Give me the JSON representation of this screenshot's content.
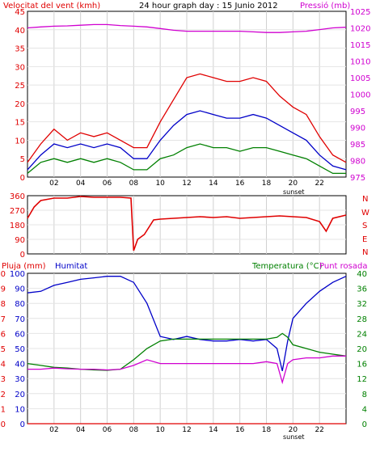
{
  "colors": {
    "wind": "#e00000",
    "wind_avg": "#0000c8",
    "gust": "#008000",
    "pressure": "#d000d0",
    "direction": "#e00000",
    "humidity": "#0000c8",
    "temperature": "#008000",
    "dewpoint": "#d000d0",
    "rain": "#e00000"
  },
  "top_panel": {
    "title": "24 hour graph day : 15 Junio 2012",
    "left_label": "Velocitat del vent (kmh)",
    "right_label": "Pressió (mb)"
  },
  "mid_panel": {
    "compass": [
      "N",
      "W",
      "S",
      "E",
      "N"
    ]
  },
  "bottom_panel": {
    "rain_label": "Pluja (mm)",
    "humidity_label": "Humitat",
    "temp_label": "Temperatura (°C)",
    "dew_label": "Punt rosada"
  },
  "sunset_label": "sunset",
  "chart_data": [
    {
      "type": "line",
      "title": "24 hour graph day : 15 Junio 2012",
      "ylabel": "Velocitat del vent (kmh)",
      "y2label": "Pressió (mb)",
      "x_ticks": [
        "02",
        "04",
        "06",
        "08",
        "10",
        "12",
        "14",
        "16",
        "18",
        "20",
        "22"
      ],
      "ylim": [
        0,
        45
      ],
      "y_ticks": [
        0,
        5,
        10,
        15,
        20,
        25,
        30,
        35,
        40,
        45
      ],
      "y2lim": [
        975,
        1025
      ],
      "y2_ticks": [
        975,
        980,
        985,
        990,
        995,
        1000,
        1005,
        1010,
        1015,
        1020,
        1025
      ],
      "x_hours": [
        0,
        1,
        2,
        3,
        4,
        5,
        6,
        7,
        8,
        9,
        10,
        11,
        12,
        13,
        14,
        15,
        16,
        17,
        18,
        19,
        20,
        21,
        22,
        23,
        24
      ],
      "series": [
        {
          "name": "gust",
          "axis": "left",
          "values": [
            4,
            9,
            13,
            10,
            12,
            11,
            12,
            10,
            8,
            8,
            15,
            21,
            27,
            28,
            27,
            26,
            26,
            27,
            26,
            22,
            19,
            17,
            11,
            6,
            4
          ]
        },
        {
          "name": "avg",
          "axis": "left",
          "values": [
            2,
            6,
            9,
            8,
            9,
            8,
            9,
            8,
            5,
            5,
            10,
            14,
            17,
            18,
            17,
            16,
            16,
            17,
            16,
            14,
            12,
            10,
            6,
            3,
            2
          ]
        },
        {
          "name": "green",
          "axis": "left",
          "values": [
            1,
            4,
            5,
            4,
            5,
            4,
            5,
            4,
            2,
            2,
            5,
            6,
            8,
            9,
            8,
            8,
            7,
            8,
            8,
            7,
            6,
            5,
            3,
            1,
            1
          ]
        },
        {
          "name": "pressure",
          "axis": "right",
          "values": [
            1020,
            1020.3,
            1020.5,
            1020.6,
            1020.8,
            1021,
            1021,
            1020.7,
            1020.5,
            1020.3,
            1019.8,
            1019.3,
            1019,
            1019,
            1019,
            1019,
            1019,
            1018.8,
            1018.6,
            1018.6,
            1018.8,
            1019,
            1019.5,
            1020,
            1020.2
          ]
        }
      ]
    },
    {
      "type": "line",
      "ylabel": "",
      "ylim": [
        0,
        360
      ],
      "y_ticks": [
        0,
        90,
        180,
        270,
        360
      ],
      "x_hours": [
        0,
        0.5,
        1,
        2,
        3,
        4,
        5,
        6,
        7,
        7.8,
        8,
        8.3,
        8.8,
        9.5,
        10,
        11,
        12,
        13,
        14,
        15,
        16,
        17,
        18,
        19,
        20,
        21,
        22,
        22.5,
        23,
        24
      ],
      "series": [
        {
          "name": "direction",
          "values": [
            220,
            290,
            330,
            345,
            345,
            355,
            350,
            350,
            350,
            345,
            20,
            90,
            120,
            210,
            215,
            220,
            225,
            230,
            225,
            230,
            220,
            225,
            230,
            235,
            230,
            225,
            200,
            140,
            220,
            240
          ]
        }
      ]
    },
    {
      "type": "line",
      "x_ticks": [
        "02",
        "04",
        "06",
        "08",
        "10",
        "12",
        "14",
        "16",
        "18",
        "20",
        "22"
      ],
      "ylabel": "Pluja (mm)",
      "ylim": [
        0,
        100
      ],
      "y_ticks_rain": [
        0,
        1,
        2,
        3,
        4,
        5,
        6,
        7,
        8,
        9,
        10
      ],
      "y_ticks_humidity": [
        0,
        10,
        20,
        30,
        40,
        50,
        60,
        70,
        80,
        90,
        100
      ],
      "y2label": "Temperatura (°C)",
      "y2lim": [
        0,
        40
      ],
      "y2_ticks": [
        0,
        4,
        8,
        12,
        16,
        20,
        24,
        28,
        32,
        36,
        40
      ],
      "x_hours": [
        0,
        1,
        2,
        3,
        4,
        5,
        6,
        7,
        8,
        9,
        10,
        11,
        12,
        13,
        14,
        15,
        16,
        17,
        18,
        18.8,
        19.2,
        19.6,
        20,
        21,
        22,
        23,
        24
      ],
      "series": [
        {
          "name": "Humitat",
          "axis": "left",
          "values": [
            87,
            88,
            92,
            94,
            96,
            97,
            98,
            98,
            94,
            80,
            58,
            56,
            58,
            56,
            55,
            55,
            56,
            55,
            56,
            50,
            35,
            55,
            70,
            80,
            88,
            94,
            98
          ]
        },
        {
          "name": "Temperatura",
          "axis": "right",
          "values": [
            16,
            15.5,
            15,
            14.8,
            14.5,
            14.3,
            14.2,
            14.5,
            17,
            20,
            22,
            22.5,
            22.5,
            22.5,
            22.5,
            22.5,
            22.5,
            22.5,
            22.5,
            23,
            24,
            23,
            21,
            20,
            19,
            18.5,
            18
          ]
        },
        {
          "name": "Punt rosada",
          "axis": "right",
          "values": [
            14.5,
            14.5,
            14.8,
            14.6,
            14.5,
            14.5,
            14.3,
            14.5,
            15.5,
            17,
            16,
            16,
            16,
            16,
            16,
            16,
            16,
            16,
            16.5,
            16,
            11,
            16,
            17,
            17.5,
            17.5,
            18,
            18
          ]
        },
        {
          "name": "Pluja",
          "axis": "rain",
          "values": [
            0,
            0,
            0,
            0,
            0,
            0,
            0,
            0,
            0,
            0,
            0,
            0,
            0,
            0,
            0,
            0,
            0,
            0,
            0,
            0,
            0,
            0,
            0,
            0,
            0,
            0,
            0
          ]
        }
      ]
    }
  ]
}
